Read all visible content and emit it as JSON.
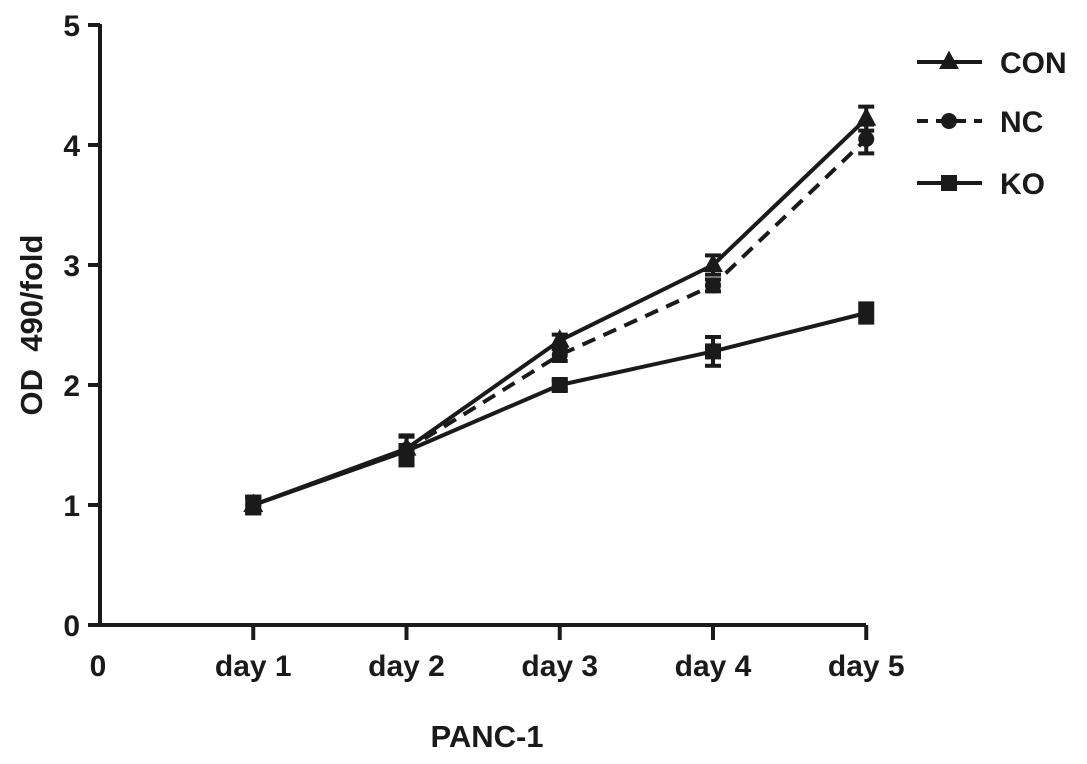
{
  "chart_data": {
    "type": "line",
    "title": "",
    "xlabel": "PANC-1",
    "ylabel": "OD  490/fold",
    "x_origin_label": "0",
    "categories": [
      "day 1",
      "day 2",
      "day 3",
      "day 4",
      "day 5"
    ],
    "ylim": [
      0,
      5
    ],
    "yticks": [
      "0",
      "1",
      "2",
      "3",
      "4",
      "5"
    ],
    "grid": false,
    "legend_position": "top-right",
    "series": [
      {
        "name": "CON",
        "marker": "triangle",
        "line_style": "solid",
        "color": "#1a1a1a",
        "values": [
          1.0,
          1.47,
          2.37,
          3.0,
          4.22
        ],
        "errors": [
          0.07,
          0.1,
          0.05,
          0.08,
          0.1
        ]
      },
      {
        "name": "NC",
        "marker": "circle",
        "line_style": "dashed",
        "color": "#1a1a1a",
        "values": [
          1.0,
          1.46,
          2.25,
          2.83,
          4.05
        ],
        "errors": [
          0.06,
          0.12,
          0.05,
          0.05,
          0.12
        ]
      },
      {
        "name": "KO",
        "marker": "square",
        "line_style": "solid",
        "color": "#1a1a1a",
        "values": [
          1.0,
          1.45,
          2.0,
          2.28,
          2.6
        ],
        "errors": [
          0.07,
          0.12,
          0.04,
          0.12,
          0.08
        ]
      }
    ]
  }
}
